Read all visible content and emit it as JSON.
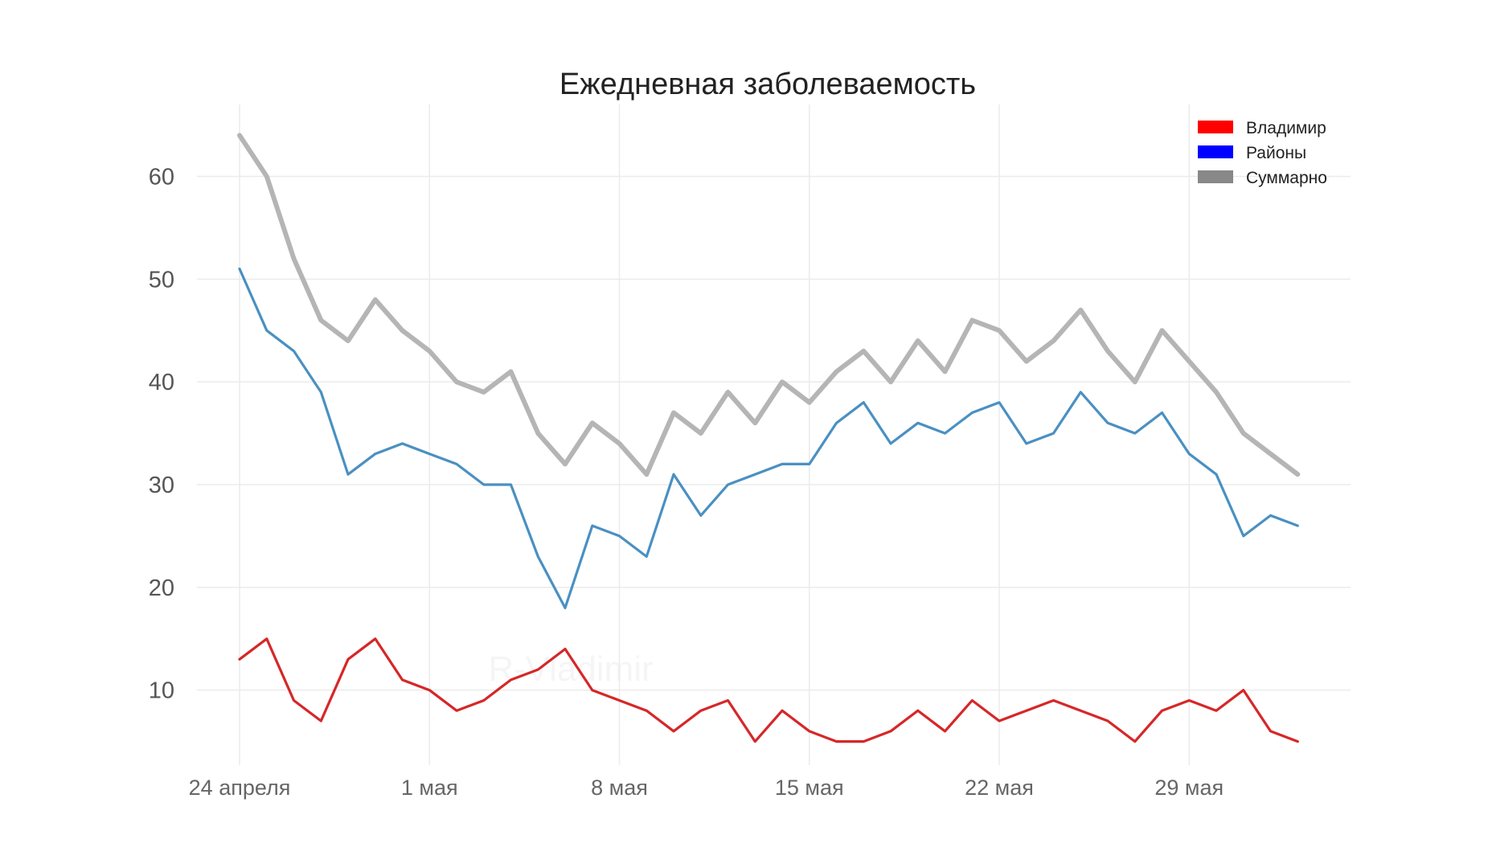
{
  "chart_data": {
    "type": "line",
    "title": "Ежедневная заболеваемость",
    "watermark": "R-Vladimir",
    "xlabel": "",
    "ylabel": "",
    "ylim": [
      2.7,
      67
    ],
    "yticks": [
      10,
      20,
      30,
      40,
      50,
      60
    ],
    "grid": true,
    "legend_position": "top-right",
    "x_tick_indices": [
      0,
      7,
      14,
      21,
      28,
      35
    ],
    "x_tick_labels": [
      "24 апреля",
      "1 мая",
      "8 мая",
      "15 мая",
      "22 мая",
      "29 мая"
    ],
    "x": [
      "24.04",
      "25.04",
      "26.04",
      "27.04",
      "28.04",
      "29.04",
      "30.04",
      "01.05",
      "02.05",
      "03.05",
      "04.05",
      "05.05",
      "06.05",
      "07.05",
      "08.05",
      "09.05",
      "10.05",
      "11.05",
      "12.05",
      "13.05",
      "14.05",
      "15.05",
      "16.05",
      "17.05",
      "18.05",
      "19.05",
      "20.05",
      "21.05",
      "22.05",
      "23.05",
      "24.05",
      "25.05",
      "26.05",
      "27.05",
      "28.05",
      "29.05",
      "30.05",
      "31.05",
      "01.06",
      "02.06"
    ],
    "series": [
      {
        "name": "Суммарно",
        "color": "#b5b5b5",
        "legend_color": "#888888",
        "values": [
          64,
          60,
          52,
          46,
          44,
          48,
          45,
          43,
          40,
          39,
          41,
          35,
          32,
          36,
          34,
          31,
          37,
          35,
          39,
          36,
          40,
          38,
          41,
          43,
          40,
          44,
          41,
          46,
          45,
          42,
          44,
          47,
          43,
          40,
          45,
          42,
          39,
          35,
          33,
          31
        ]
      },
      {
        "name": "Районы",
        "color": "#4a90c2",
        "legend_color": "#0000ff",
        "values": [
          51,
          45,
          43,
          39,
          31,
          33,
          34,
          33,
          32,
          30,
          30,
          23,
          18,
          26,
          25,
          23,
          31,
          27,
          30,
          31,
          32,
          32,
          36,
          38,
          34,
          36,
          35,
          37,
          38,
          34,
          35,
          39,
          36,
          35,
          37,
          33,
          31,
          25,
          27,
          26
        ]
      },
      {
        "name": "Владимир",
        "color": "#d62728",
        "legend_color": "#ff0000",
        "values": [
          13,
          15,
          9,
          7,
          13,
          15,
          11,
          10,
          8,
          9,
          11,
          12,
          14,
          10,
          9,
          8,
          6,
          8,
          9,
          5,
          8,
          6,
          5,
          5,
          6,
          8,
          6,
          9,
          7,
          8,
          9,
          8,
          7,
          5,
          8,
          9,
          8,
          10,
          6,
          5
        ]
      }
    ],
    "legend_order": [
      "Владимир",
      "Районы",
      "Суммарно"
    ]
  }
}
